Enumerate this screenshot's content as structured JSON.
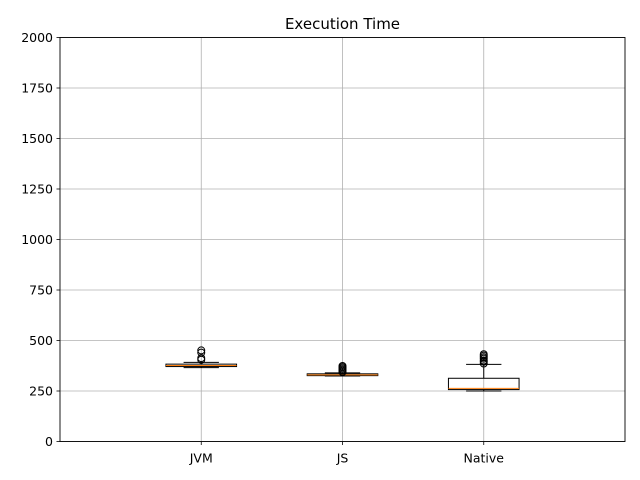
{
  "chart_data": {
    "type": "box",
    "title": "Execution Time",
    "xlabel": "",
    "ylabel": "",
    "categories": [
      "JVM",
      "JS",
      "Native"
    ],
    "ylim": [
      0,
      2000
    ],
    "yticks": [
      0,
      250,
      500,
      750,
      1000,
      1250,
      1500,
      1750,
      2000
    ],
    "grid": true,
    "boxes": [
      {
        "label": "JVM",
        "whisker_low": 366,
        "q1": 371,
        "median": 376,
        "q3": 383,
        "whisker_high": 392,
        "outliers": [
          405,
          413,
          440,
          451
        ]
      },
      {
        "label": "JS",
        "whisker_low": 324,
        "q1": 326,
        "median": 330,
        "q3": 335,
        "whisker_high": 340,
        "outliers": [
          344,
          350,
          356,
          362,
          368,
          374
        ]
      },
      {
        "label": "Native",
        "whisker_low": 250,
        "q1": 257,
        "median": 263,
        "q3": 313,
        "whisker_high": 382,
        "outliers": [
          386,
          395,
          401,
          410,
          417,
          425,
          432
        ]
      }
    ],
    "colors": {
      "box": "#000000",
      "median": "#ff7f0e",
      "grid": "#b0b0b0",
      "flier": "#000000"
    }
  }
}
